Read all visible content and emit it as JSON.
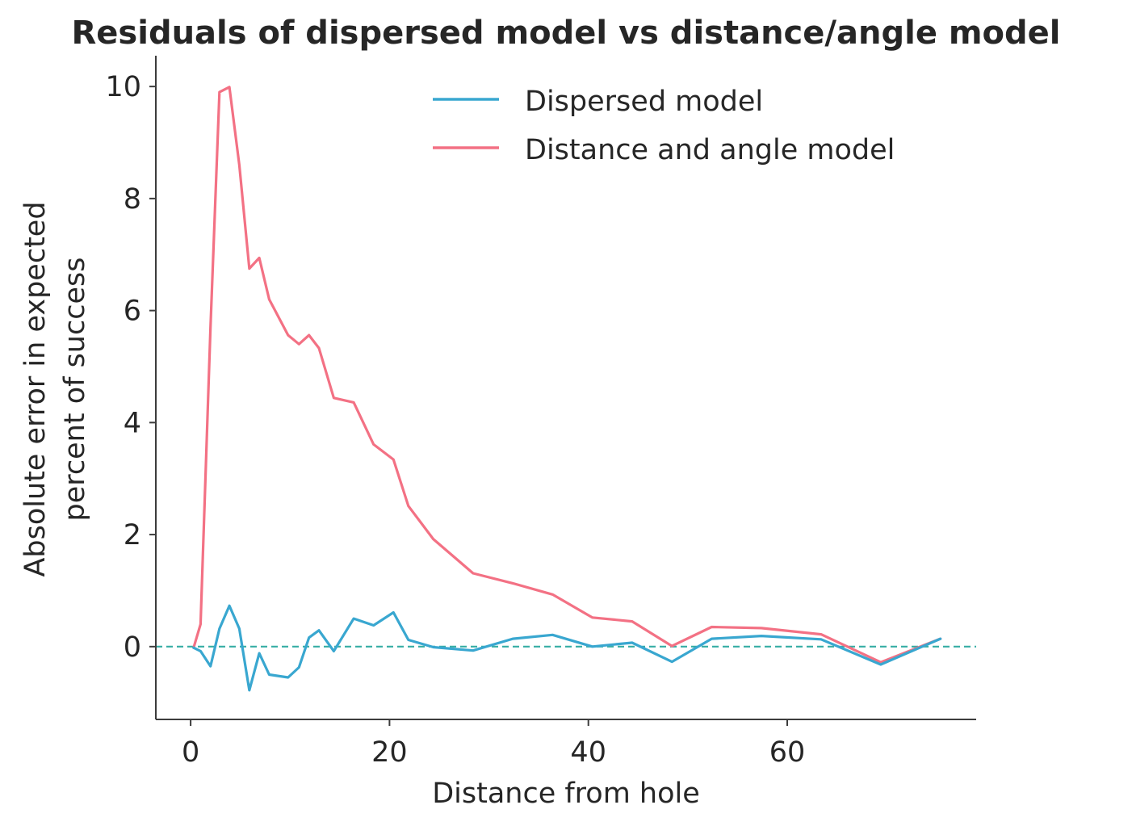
{
  "chart_data": {
    "type": "line",
    "title": "Residuals of dispersed model vs distance/angle model",
    "xlabel": "Distance from hole",
    "ylabel_lines": [
      "Absolute error in expected",
      "percent of success"
    ],
    "xlim": [
      -3.5,
      79
    ],
    "ylim": [
      -1.3,
      10.55
    ],
    "xticks": [
      0,
      20,
      40,
      60
    ],
    "yticks": [
      0,
      2,
      4,
      6,
      8,
      10
    ],
    "grid": false,
    "legend_position": "top-center",
    "reference_line": {
      "y": 0,
      "style": "dashed",
      "color": "#36ada4"
    },
    "series": [
      {
        "name": "Dispersed model",
        "color": "#39a7d0",
        "x": [
          0.3,
          1.0,
          2.0,
          2.9,
          3.9,
          4.9,
          5.9,
          6.9,
          7.9,
          9.8,
          10.9,
          11.9,
          12.9,
          14.4,
          16.4,
          18.4,
          20.4,
          21.9,
          24.4,
          28.4,
          32.4,
          36.4,
          40.4,
          44.4,
          48.4,
          52.4,
          57.4,
          63.4,
          69.4,
          75.4
        ],
        "y": [
          -0.02,
          -0.08,
          -0.35,
          0.32,
          0.73,
          0.32,
          -0.78,
          -0.12,
          -0.5,
          -0.55,
          -0.37,
          0.16,
          0.29,
          -0.08,
          0.5,
          0.38,
          0.61,
          0.12,
          -0.01,
          -0.07,
          0.14,
          0.21,
          0.0,
          0.07,
          -0.27,
          0.14,
          0.19,
          0.13,
          -0.32,
          0.14
        ]
      },
      {
        "name": "Distance and angle model",
        "color": "#f37184",
        "x": [
          0.3,
          1.0,
          2.0,
          2.9,
          3.9,
          4.9,
          5.9,
          6.9,
          7.9,
          9.8,
          10.9,
          11.9,
          12.9,
          14.4,
          16.4,
          18.4,
          20.4,
          21.9,
          24.4,
          28.4,
          32.4,
          36.4,
          40.4,
          44.4,
          48.4,
          52.4,
          57.4,
          63.4,
          69.4,
          75.4
        ],
        "y": [
          -0.02,
          0.4,
          5.7,
          9.9,
          9.99,
          8.6,
          6.75,
          6.94,
          6.2,
          5.56,
          5.4,
          5.56,
          5.33,
          4.44,
          4.36,
          3.61,
          3.34,
          2.51,
          1.92,
          1.31,
          1.13,
          0.93,
          0.52,
          0.45,
          0.01,
          0.35,
          0.33,
          0.22,
          -0.28,
          0.14
        ]
      }
    ]
  }
}
